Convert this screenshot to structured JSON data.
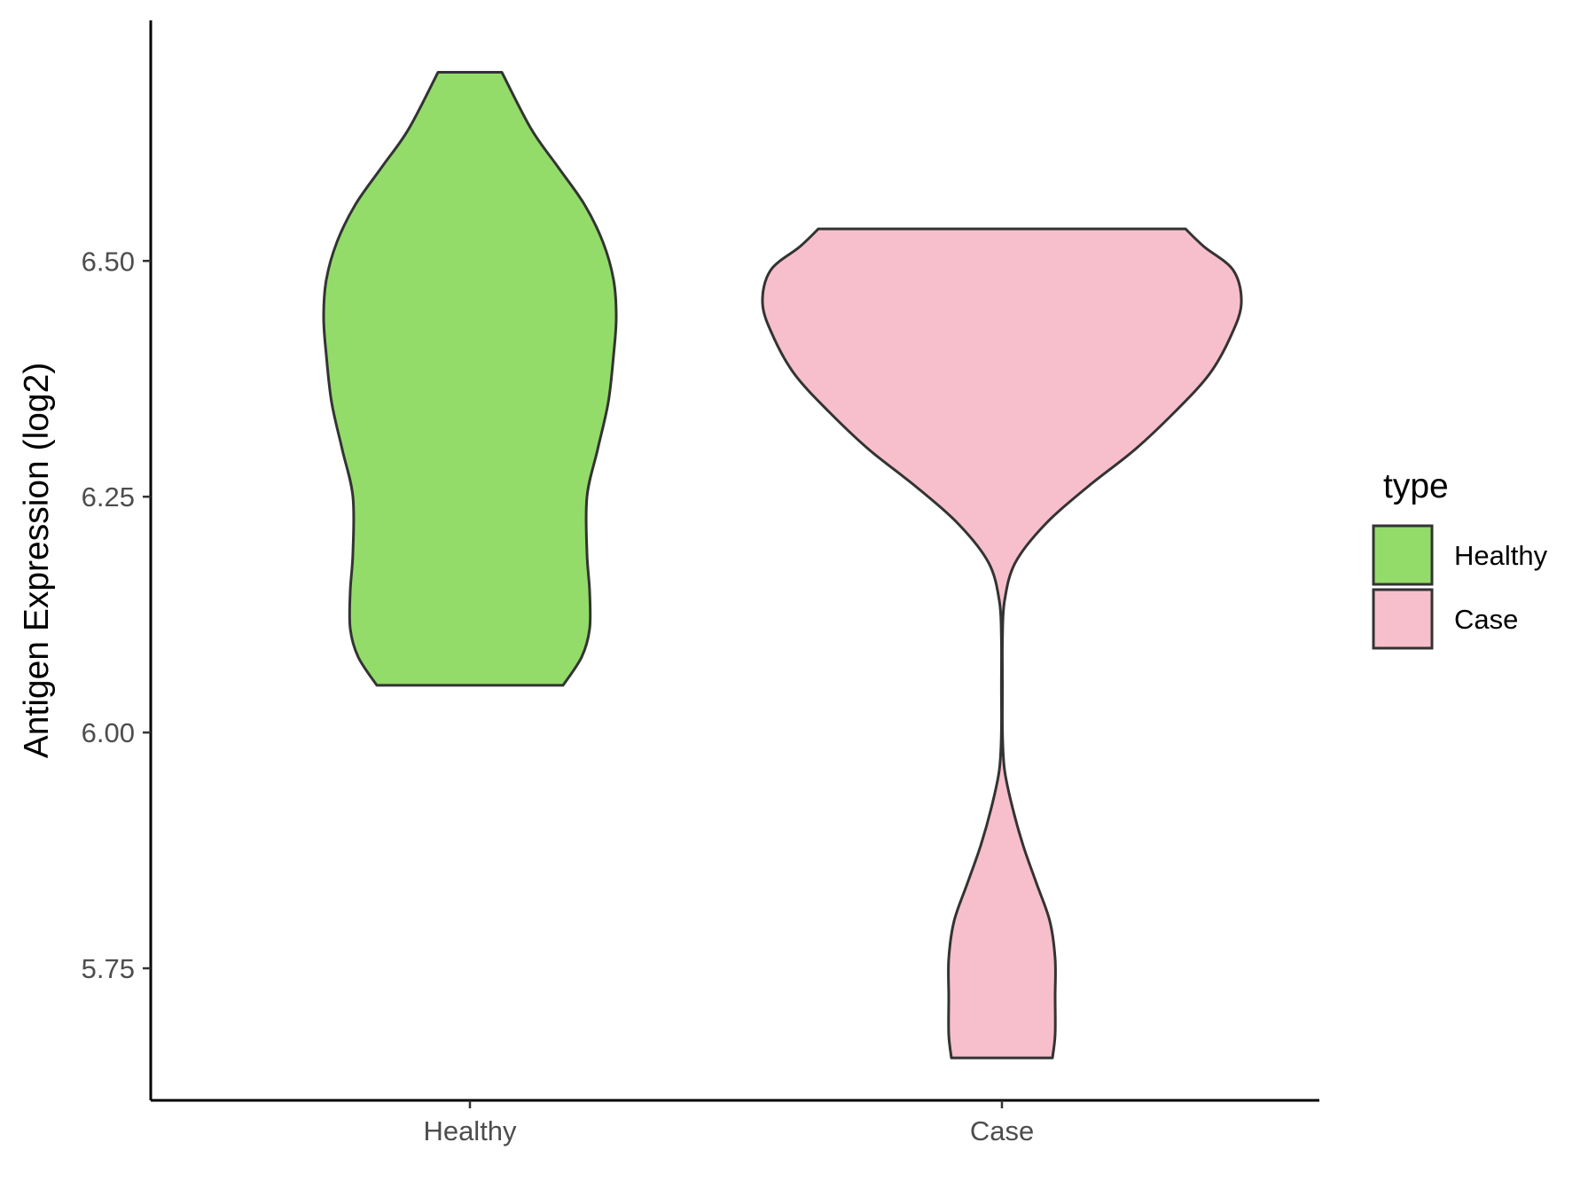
{
  "chart_data": {
    "type": "violin",
    "title": "",
    "xlabel": "",
    "ylabel": "Antigen Expression (log2)",
    "ylim": [
      5.61,
      6.755
    ],
    "yticks": [
      "5.75",
      "6.00",
      "6.25",
      "6.50"
    ],
    "categories": [
      "Healthy",
      "Case"
    ],
    "legend": {
      "title": "type",
      "position": "right",
      "entries": [
        "Healthy",
        "Case"
      ]
    },
    "colors": {
      "Healthy": "#93dc6a",
      "Case": "#f7bfcb",
      "outline": "#333333",
      "axis": "#000000"
    },
    "series": [
      {
        "name": "Healthy",
        "min": 6.05,
        "max": 6.7,
        "density": [
          [
            6.05,
            0.35
          ],
          [
            6.08,
            0.42
          ],
          [
            6.11,
            0.45
          ],
          [
            6.15,
            0.45
          ],
          [
            6.19,
            0.44
          ],
          [
            6.25,
            0.44
          ],
          [
            6.3,
            0.48
          ],
          [
            6.35,
            0.52
          ],
          [
            6.4,
            0.54
          ],
          [
            6.44,
            0.55
          ],
          [
            6.48,
            0.54
          ],
          [
            6.52,
            0.5
          ],
          [
            6.56,
            0.43
          ],
          [
            6.6,
            0.33
          ],
          [
            6.64,
            0.23
          ],
          [
            6.7,
            0.12
          ]
        ]
      },
      {
        "name": "Case",
        "min": 5.655,
        "max": 6.534,
        "density": [
          [
            5.655,
            0.19
          ],
          [
            5.68,
            0.2
          ],
          [
            5.72,
            0.2
          ],
          [
            5.76,
            0.2
          ],
          [
            5.8,
            0.18
          ],
          [
            5.84,
            0.13
          ],
          [
            5.88,
            0.08
          ],
          [
            5.92,
            0.04
          ],
          [
            5.96,
            0.01
          ],
          [
            6.0,
            0.0
          ],
          [
            6.05,
            0.0
          ],
          [
            6.1,
            0.0
          ],
          [
            6.14,
            0.01
          ],
          [
            6.18,
            0.05
          ],
          [
            6.22,
            0.16
          ],
          [
            6.26,
            0.32
          ],
          [
            6.3,
            0.5
          ],
          [
            6.34,
            0.65
          ],
          [
            6.38,
            0.78
          ],
          [
            6.42,
            0.86
          ],
          [
            6.455,
            0.9
          ],
          [
            6.49,
            0.87
          ],
          [
            6.515,
            0.76
          ],
          [
            6.534,
            0.69
          ]
        ]
      }
    ]
  }
}
